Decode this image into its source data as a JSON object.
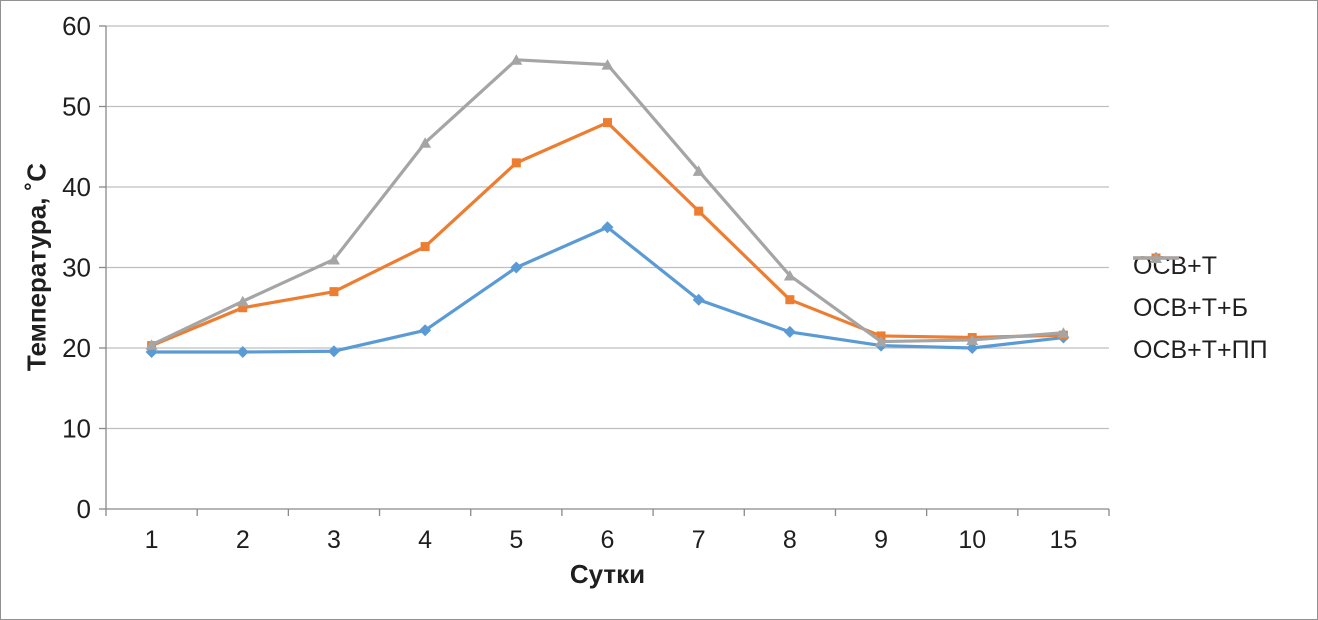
{
  "chart_data": {
    "type": "line",
    "title": "",
    "xlabel": "Сутки",
    "ylabel": "Температура, ˚С",
    "categories": [
      "1",
      "2",
      "3",
      "4",
      "5",
      "6",
      "7",
      "8",
      "9",
      "10",
      "15"
    ],
    "yticks": [
      0,
      10,
      20,
      30,
      40,
      50,
      60
    ],
    "ylim": [
      0,
      60
    ],
    "grid": "horizontal",
    "legend_position": "right",
    "series": [
      {
        "name": "ОСВ+Т",
        "marker": "diamond",
        "color": "#5B9BD5",
        "values": [
          19.5,
          19.5,
          19.6,
          22.2,
          30,
          35,
          26,
          22,
          20.3,
          20,
          21.3
        ]
      },
      {
        "name": "ОСВ+Т+Б",
        "marker": "square",
        "color": "#ED7D31",
        "values": [
          20.3,
          25,
          27,
          32.6,
          43,
          48,
          37,
          26,
          21.5,
          21.3,
          21.6
        ]
      },
      {
        "name": "ОСВ+Т+ПП",
        "marker": "triangle",
        "color": "#A5A5A5",
        "values": [
          20.4,
          25.8,
          31,
          45.5,
          55.8,
          55.2,
          42,
          29,
          20.8,
          21,
          21.9
        ]
      }
    ],
    "colors": {
      "gridline": "#BFBFBF",
      "axis": "#898989",
      "text": "#1F1F1F",
      "background": "#FFFFFF",
      "border": "#919191"
    }
  }
}
